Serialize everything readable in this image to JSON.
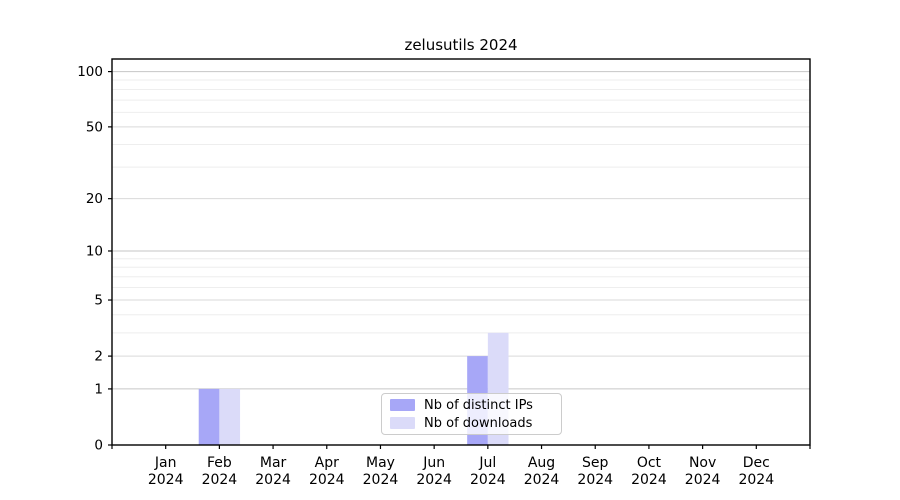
{
  "chart_data": {
    "type": "bar",
    "title": "zelusutils 2024",
    "categories": [
      "Jan",
      "Feb",
      "Mar",
      "Apr",
      "May",
      "Jun",
      "Jul",
      "Aug",
      "Sep",
      "Oct",
      "Nov",
      "Dec"
    ],
    "tick_year": "2024",
    "series": [
      {
        "name": "Nb of distinct IPs",
        "color": "#a7a7f7",
        "values": [
          0,
          1,
          0,
          0,
          0,
          0,
          2,
          0,
          0,
          0,
          0,
          0
        ]
      },
      {
        "name": "Nb of downloads",
        "color": "#dbdbf9",
        "values": [
          0,
          1,
          0,
          0,
          0,
          0,
          3,
          0,
          0,
          0,
          0,
          0
        ]
      }
    ],
    "yscale": "log1p",
    "ylim": [
      0,
      117
    ],
    "yticks": [
      0,
      1,
      2,
      5,
      10,
      20,
      50,
      100
    ],
    "yticks_minor": [
      3,
      4,
      6,
      7,
      8,
      9,
      30,
      40,
      60,
      70,
      80,
      90
    ],
    "grid": true,
    "legend_position": "lower center",
    "colors": {
      "grid_decade": "#c6c6c6",
      "grid_major": "#d9d9d9",
      "grid_minor": "#eeeeee",
      "axis": "#000000"
    }
  }
}
